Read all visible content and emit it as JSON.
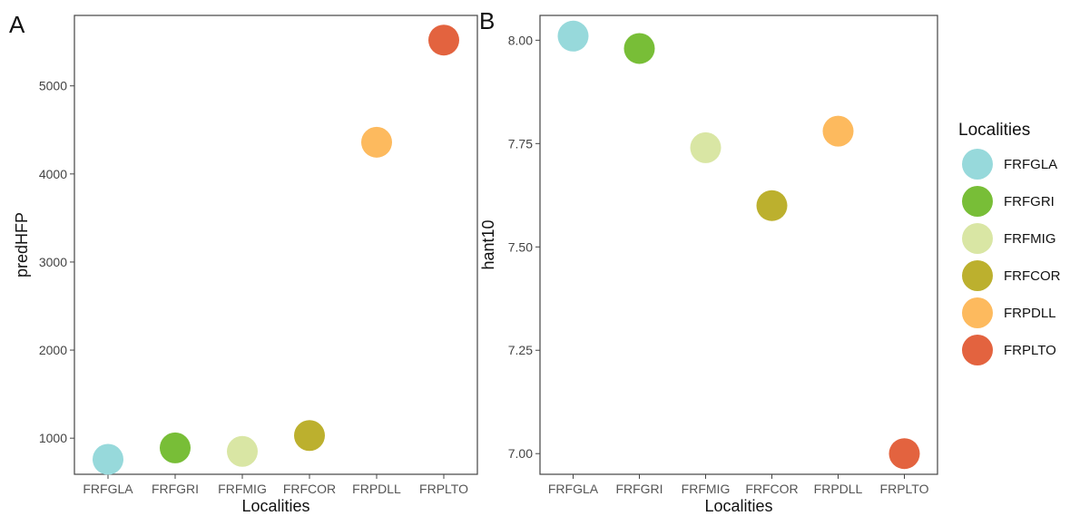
{
  "figure": {
    "panel_a_label": "A",
    "panel_b_label": "B"
  },
  "legend": {
    "title": "Localities",
    "items": [
      {
        "label": "FRFGLA",
        "color": "#97D9DB"
      },
      {
        "label": "FRFGRI",
        "color": "#78BE37"
      },
      {
        "label": "FRFMIG",
        "color": "#D9E6A4"
      },
      {
        "label": "FRFCOR",
        "color": "#BCB02E"
      },
      {
        "label": "FRPDLL",
        "color": "#FDBA5E"
      },
      {
        "label": "FRPLTO",
        "color": "#E3633F"
      }
    ]
  },
  "chart_data": [
    {
      "type": "scatter",
      "panel": "A",
      "xlabel": "Localities",
      "ylabel": "predHFP",
      "categories": [
        "FRFGLA",
        "FRFGRI",
        "FRFMIG",
        "FRFCOR",
        "FRPDLL",
        "FRPLTO"
      ],
      "values": [
        760,
        890,
        850,
        1030,
        4360,
        5520
      ],
      "ylim": [
        590,
        5800
      ],
      "yticks": [
        1000,
        2000,
        3000,
        4000,
        5000
      ],
      "ytick_labels": [
        "1000",
        "2000",
        "3000",
        "4000",
        "5000"
      ],
      "grid": false
    },
    {
      "type": "scatter",
      "panel": "B",
      "xlabel": "Localities",
      "ylabel": "hant10",
      "categories": [
        "FRFGLA",
        "FRFGRI",
        "FRFMIG",
        "FRFCOR",
        "FRPDLL",
        "FRPLTO"
      ],
      "values": [
        8.01,
        7.98,
        7.74,
        7.6,
        7.78,
        7.0
      ],
      "ylim": [
        6.95,
        8.06
      ],
      "yticks": [
        7.0,
        7.25,
        7.5,
        7.75,
        8.0
      ],
      "ytick_labels": [
        "7.00",
        "7.25",
        "7.50",
        "7.75",
        "8.00"
      ],
      "grid": false
    }
  ]
}
